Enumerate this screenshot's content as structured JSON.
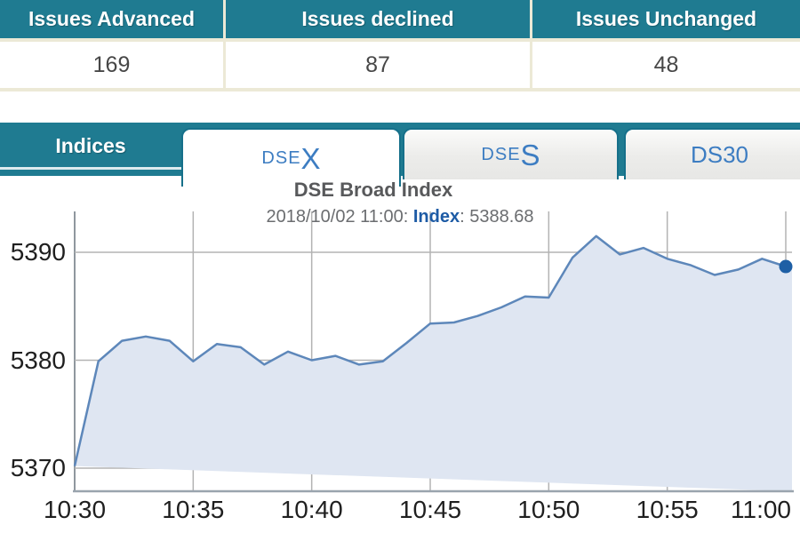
{
  "summary_table": {
    "columns": [
      {
        "header": "Issues Advanced",
        "value": "169"
      },
      {
        "header": "Issues declined",
        "value": "87"
      },
      {
        "header": "Issues Unchanged",
        "value": "48"
      }
    ]
  },
  "tabs": {
    "bar_label": "Indices",
    "items": [
      {
        "prefix": "DSE",
        "suffix": "X",
        "active": true
      },
      {
        "prefix": "DSE",
        "suffix": "S",
        "active": false
      },
      {
        "label": "DS30",
        "active": false
      }
    ]
  },
  "chart_data": {
    "type": "area",
    "title": "DSE Broad Index",
    "subtitle": {
      "datetime_text": "2018/10/02 11:00: ",
      "label": "Index",
      "separator": ": ",
      "value": "5388.68"
    },
    "x_tick_labels": [
      "10:30",
      "10:35",
      "10:40",
      "10:45",
      "10:50",
      "10:55",
      "11:00"
    ],
    "y_ticks": [
      5390,
      5380,
      5370
    ],
    "ylim": [
      5368,
      5393.5
    ],
    "grid": true,
    "series": [
      {
        "name": "Index",
        "times": [
          "10:30",
          "10:31",
          "10:32",
          "10:33",
          "10:34",
          "10:35",
          "10:36",
          "10:37",
          "10:38",
          "10:39",
          "10:40",
          "10:41",
          "10:42",
          "10:43",
          "10:44",
          "10:45",
          "10:46",
          "10:47",
          "10:48",
          "10:49",
          "10:50",
          "10:51",
          "10:52",
          "10:53",
          "10:54",
          "10:55",
          "10:56",
          "10:57",
          "10:58",
          "10:59",
          "11:00"
        ],
        "values": [
          5370.2,
          5379.9,
          5381.8,
          5382.2,
          5381.8,
          5379.9,
          5381.5,
          5381.2,
          5379.6,
          5380.8,
          5380.0,
          5380.4,
          5379.6,
          5379.9,
          5381.6,
          5383.4,
          5383.5,
          5384.1,
          5384.9,
          5385.9,
          5385.8,
          5389.5,
          5391.5,
          5389.8,
          5390.4,
          5389.4,
          5388.8,
          5387.9,
          5388.4,
          5389.4,
          5388.68
        ]
      }
    ],
    "last_point": {
      "time": "11:00",
      "value": 5388.68
    }
  },
  "colors": {
    "teal": "#1f7b91",
    "tab_text": "#3d7dc2",
    "line": "#5d87ba",
    "fill": "#dfe6f2",
    "marker": "#1e5fa5",
    "grid": "#b3b3b3",
    "table_border": "#ece9d6"
  }
}
